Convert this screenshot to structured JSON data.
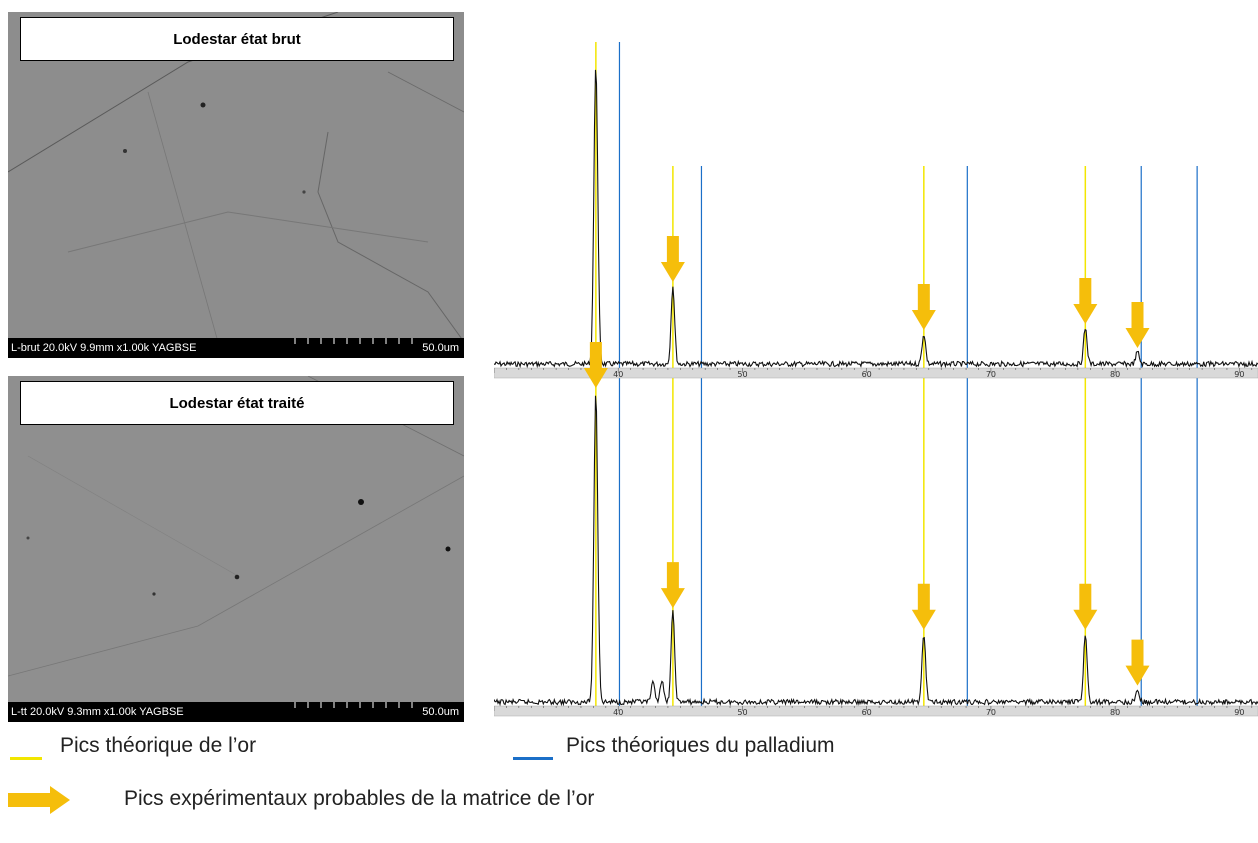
{
  "panels": [
    {
      "title": "Lodestar état brut",
      "info": "L-brut 20.0kV 9.9mm x1.00k YAGBSE",
      "scale": "50.0um"
    },
    {
      "title": "Lodestar état traité",
      "info": "L-tt 20.0kV 9.3mm x1.00k YAGBSE",
      "scale": "50.0um"
    }
  ],
  "legend": {
    "gold_label": "Pics théorique de l’or",
    "pd_label": "Pics théoriques du palladium",
    "arrow_label": "Pics expérimentaux probables de la matrice de l’or"
  },
  "colors": {
    "gold": "#f2e600",
    "palladium": "#1b6fc8",
    "arrow": "#f5be0b"
  },
  "chart_data": {
    "type": "line",
    "x_ticks": [
      "40",
      "50",
      "60",
      "70",
      "80",
      "90"
    ],
    "xlim": [
      30,
      91.5
    ],
    "gold_theoretical_peaks": [
      38.2,
      44.4,
      64.6,
      77.6
    ],
    "palladium_theoretical_peaks": [
      40.1,
      46.7,
      68.1,
      82.1,
      86.6
    ],
    "spectra": [
      {
        "peaks": [
          {
            "x": 38.2,
            "h": 1.0
          },
          {
            "x": 44.4,
            "h": 0.26
          },
          {
            "x": 64.6,
            "h": 0.1
          },
          {
            "x": 77.6,
            "h": 0.12
          },
          {
            "x": 81.8,
            "h": 0.04
          }
        ],
        "arrows": [
          44.4,
          64.6,
          77.6,
          81.8
        ]
      },
      {
        "peaks": [
          {
            "x": 38.2,
            "h": 1.0
          },
          {
            "x": 42.8,
            "h": 0.06
          },
          {
            "x": 43.5,
            "h": 0.07
          },
          {
            "x": 44.4,
            "h": 0.29
          },
          {
            "x": 64.6,
            "h": 0.22
          },
          {
            "x": 77.6,
            "h": 0.22
          },
          {
            "x": 81.8,
            "h": 0.04
          }
        ],
        "arrows": [
          38.2,
          44.4,
          64.6,
          77.6,
          81.8
        ]
      }
    ]
  }
}
